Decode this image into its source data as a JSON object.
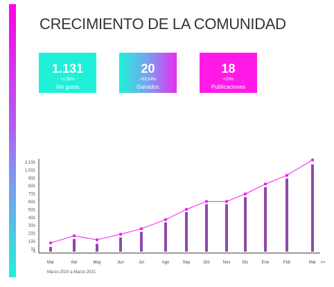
{
  "title": "CRECIMIENTO DE LA COMUNIDAD",
  "kpis": [
    {
      "value": "1.131",
      "change": "+2,58%",
      "label": "Me gusta"
    },
    {
      "value": "20",
      "change": "+63,64%",
      "label": "Ganados"
    },
    {
      "value": "18",
      "change": "+20%",
      "label": "Publicaciones"
    }
  ],
  "date_range": "Marzo 2020 a Marzo 2021",
  "colors": {
    "bars": "#8e4aa6",
    "line": "#f01ef0",
    "teal": "#1ff0d8",
    "magenta": "#ff1ae8"
  },
  "chart_data": {
    "type": "bar",
    "categories": [
      "Mar",
      "Abr",
      "May",
      "Jun",
      "Jul",
      "Ago",
      "Sep",
      "Oct",
      "Nov",
      "Dic",
      "Ene",
      "Feb",
      "Mar"
    ],
    "x_extra_label": ">>",
    "series": [
      {
        "type": "bar",
        "values": [
          60,
          160,
          100,
          180,
          250,
          370,
          500,
          600,
          600,
          690,
          815,
          925,
          1103
        ]
      },
      {
        "type": "line",
        "values": [
          110,
          200,
          150,
          220,
          290,
          405,
          535,
          635,
          635,
          730,
          855,
          965,
          1160
        ]
      }
    ],
    "y_ticks": [
      0,
      31,
      131,
      231,
      331,
      431,
      531,
      631,
      731,
      831,
      931,
      1031,
      1131
    ],
    "y_tick_labels": [
      "0",
      "31",
      "131",
      "231",
      "331",
      "431",
      "531",
      "631",
      "731",
      "831",
      "931",
      "1.031",
      "1.131"
    ],
    "ylim": [
      0,
      1180
    ],
    "grid": false,
    "legend": "none"
  }
}
